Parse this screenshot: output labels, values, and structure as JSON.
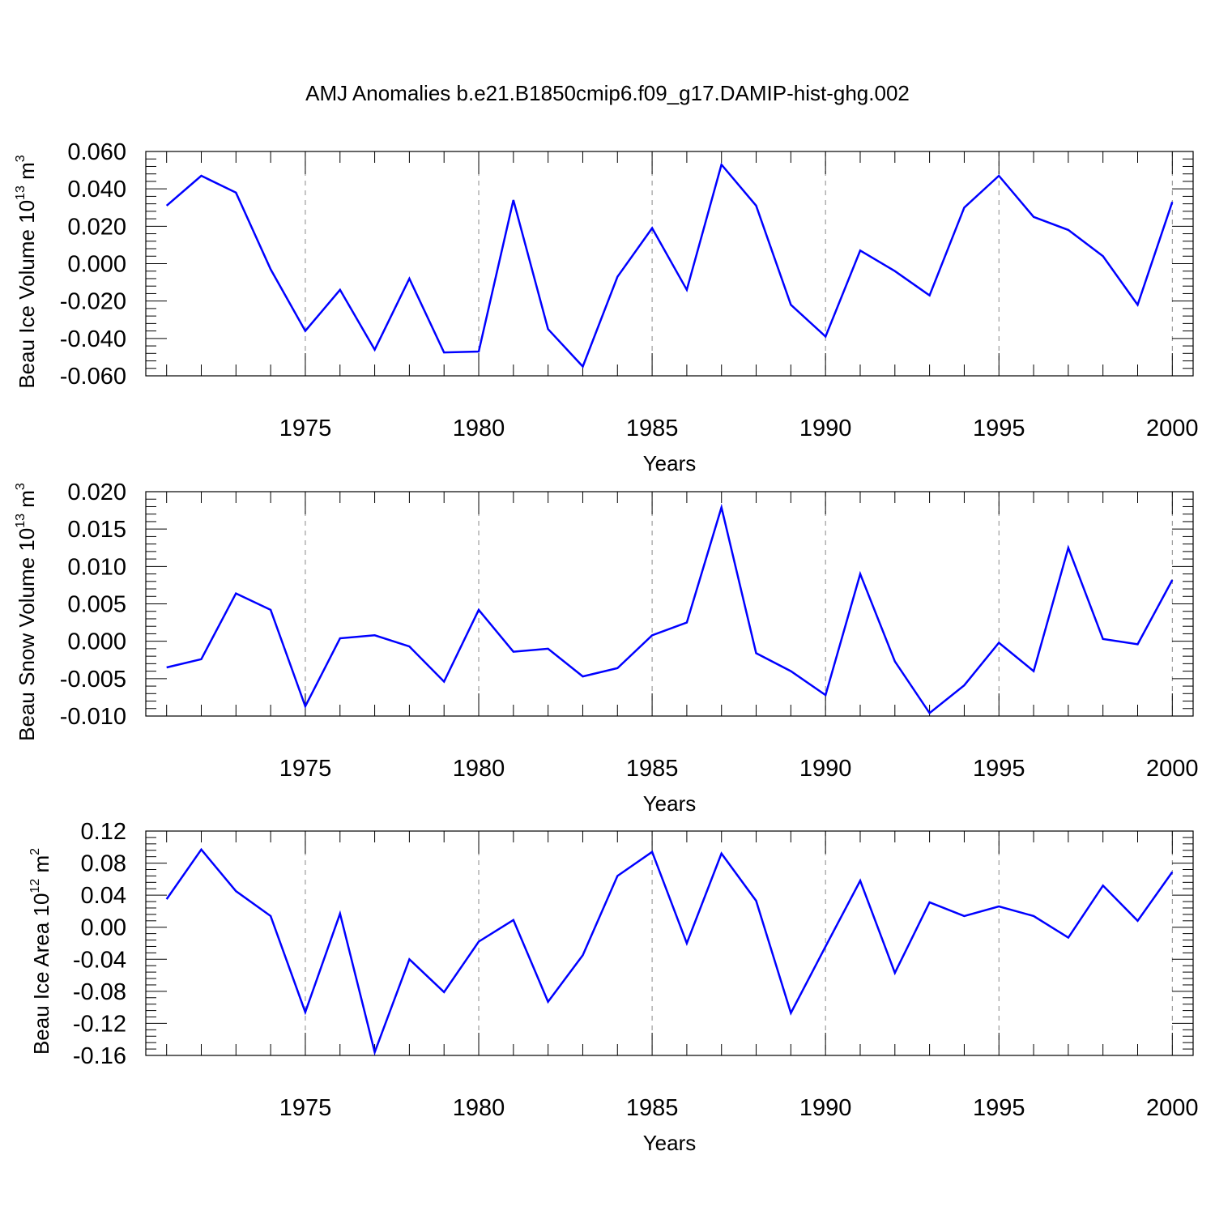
{
  "title": "AMJ Anomalies b.e21.B1850cmip6.f09_g17.DAMIP-hist-ghg.002",
  "colors": {
    "series": "#0000ff",
    "axis": "#000000",
    "grid": "#888888"
  },
  "chart_data": [
    {
      "type": "line",
      "xlabel": "Years",
      "ylabel": {
        "main": "Beau Ice Volume 10",
        "exp": "13",
        "unit": " m",
        "unit_exp": "3"
      },
      "xlim": [
        1971,
        2000
      ],
      "ylim": [
        -0.06,
        0.06
      ],
      "yticks": [
        "0.060",
        "0.040",
        "0.020",
        "0.000",
        "-0.020",
        "-0.040",
        "-0.060"
      ],
      "ytick_values": [
        0.06,
        0.04,
        0.02,
        0.0,
        -0.02,
        -0.04,
        -0.06
      ],
      "xticks": [
        "1975",
        "1980",
        "1985",
        "1990",
        "1995",
        "2000"
      ],
      "xtick_values": [
        1975,
        1980,
        1985,
        1990,
        1995,
        2000
      ],
      "x": [
        1971,
        1972,
        1973,
        1974,
        1975,
        1976,
        1977,
        1978,
        1979,
        1980,
        1981,
        1982,
        1983,
        1984,
        1985,
        1986,
        1987,
        1988,
        1989,
        1990,
        1991,
        1992,
        1993,
        1994,
        1995,
        1996,
        1997,
        1998,
        1999,
        2000
      ],
      "y": [
        0.031,
        0.047,
        0.038,
        -0.003,
        -0.036,
        -0.014,
        -0.046,
        -0.008,
        -0.0475,
        -0.047,
        0.034,
        -0.035,
        -0.055,
        -0.007,
        0.019,
        -0.014,
        0.053,
        0.031,
        -0.022,
        -0.039,
        0.007,
        -0.004,
        -0.017,
        0.03,
        0.047,
        0.025,
        0.018,
        0.004,
        -0.022,
        0.033
      ]
    },
    {
      "type": "line",
      "xlabel": "Years",
      "ylabel": {
        "main": "Beau Snow Volume 10",
        "exp": "13",
        "unit": " m",
        "unit_exp": "3"
      },
      "xlim": [
        1971,
        2000
      ],
      "ylim": [
        -0.01,
        0.02
      ],
      "yticks": [
        "0.020",
        "0.015",
        "0.010",
        "0.005",
        "0.000",
        "-0.005",
        "-0.010"
      ],
      "ytick_values": [
        0.02,
        0.015,
        0.01,
        0.005,
        0.0,
        -0.005,
        -0.01
      ],
      "xticks": [
        "1975",
        "1980",
        "1985",
        "1990",
        "1995",
        "2000"
      ],
      "xtick_values": [
        1975,
        1980,
        1985,
        1990,
        1995,
        2000
      ],
      "x": [
        1971,
        1972,
        1973,
        1974,
        1975,
        1976,
        1977,
        1978,
        1979,
        1980,
        1981,
        1982,
        1983,
        1984,
        1985,
        1986,
        1987,
        1988,
        1989,
        1990,
        1991,
        1992,
        1993,
        1994,
        1995,
        1996,
        1997,
        1998,
        1999,
        2000
      ],
      "y": [
        -0.0035,
        -0.0024,
        0.0064,
        0.0042,
        -0.0087,
        0.0004,
        0.0008,
        -0.0007,
        -0.0054,
        0.0042,
        -0.0014,
        -0.001,
        -0.0047,
        -0.0036,
        0.0008,
        0.0025,
        0.0179,
        -0.0016,
        -0.004,
        -0.0072,
        0.009,
        -0.0027,
        -0.0096,
        -0.0059,
        -0.0002,
        -0.004,
        0.0125,
        0.0003,
        -0.0004,
        0.0082
      ]
    },
    {
      "type": "line",
      "xlabel": "Years",
      "ylabel": {
        "main": "Beau Ice Area 10",
        "exp": "12",
        "unit": " m",
        "unit_exp": "2"
      },
      "xlim": [
        1971,
        2000
      ],
      "ylim": [
        -0.16,
        0.12
      ],
      "yticks": [
        "0.12",
        "0.08",
        "0.04",
        "0.00",
        "-0.04",
        "-0.08",
        "-0.12",
        "-0.16"
      ],
      "ytick_values": [
        0.12,
        0.08,
        0.04,
        0.0,
        -0.04,
        -0.08,
        -0.12,
        -0.16
      ],
      "xticks": [
        "1975",
        "1980",
        "1985",
        "1990",
        "1995",
        "2000"
      ],
      "xtick_values": [
        1975,
        1980,
        1985,
        1990,
        1995,
        2000
      ],
      "x": [
        1971,
        1972,
        1973,
        1974,
        1975,
        1976,
        1977,
        1978,
        1979,
        1980,
        1981,
        1982,
        1983,
        1984,
        1985,
        1986,
        1987,
        1988,
        1989,
        1990,
        1991,
        1992,
        1993,
        1994,
        1995,
        1996,
        1997,
        1998,
        1999,
        2000
      ],
      "y": [
        0.035,
        0.097,
        0.045,
        0.014,
        -0.106,
        0.017,
        -0.156,
        -0.04,
        -0.081,
        -0.018,
        0.009,
        -0.093,
        -0.035,
        0.064,
        0.094,
        -0.02,
        0.092,
        0.033,
        -0.107,
        -0.024,
        0.058,
        -0.057,
        0.031,
        0.014,
        0.026,
        0.014,
        -0.013,
        0.052,
        0.008,
        0.069
      ]
    }
  ]
}
